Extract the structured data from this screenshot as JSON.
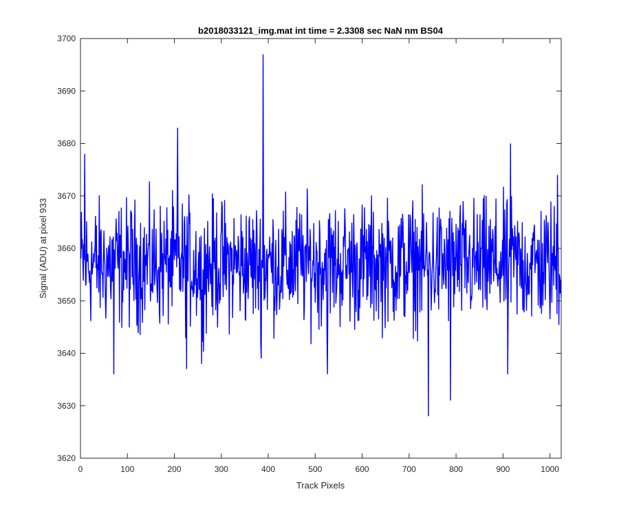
{
  "chart_data": {
    "type": "line",
    "title": "b2018033121_img.mat int time = 2.3308 sec  NaN nm BS04",
    "xlabel": "Track Pixels",
    "ylabel": "Signal (ADU) at pixel 933",
    "xlim": [
      0,
      1024
    ],
    "ylim": [
      3620,
      3700
    ],
    "xticks": [
      0,
      100,
      200,
      300,
      400,
      500,
      600,
      700,
      800,
      900,
      1000
    ],
    "yticks": [
      3620,
      3630,
      3640,
      3650,
      3660,
      3670,
      3680,
      3690,
      3700
    ],
    "grid": false,
    "legend": "none",
    "line_color": "#0000FF",
    "series": [
      {
        "n_points": 1024,
        "mean": 3657,
        "noise_halfspread": 11,
        "notable_points": [
          {
            "x": 8,
            "y": 3678
          },
          {
            "x": 70,
            "y": 3636
          },
          {
            "x": 206,
            "y": 3683
          },
          {
            "x": 225,
            "y": 3637
          },
          {
            "x": 257,
            "y": 3638
          },
          {
            "x": 388,
            "y": 3697
          },
          {
            "x": 384,
            "y": 3639
          },
          {
            "x": 525,
            "y": 3636
          },
          {
            "x": 740,
            "y": 3628
          },
          {
            "x": 787,
            "y": 3631
          },
          {
            "x": 915,
            "y": 3680
          },
          {
            "x": 909,
            "y": 3636
          },
          {
            "x": 1015,
            "y": 3674
          }
        ]
      }
    ]
  }
}
